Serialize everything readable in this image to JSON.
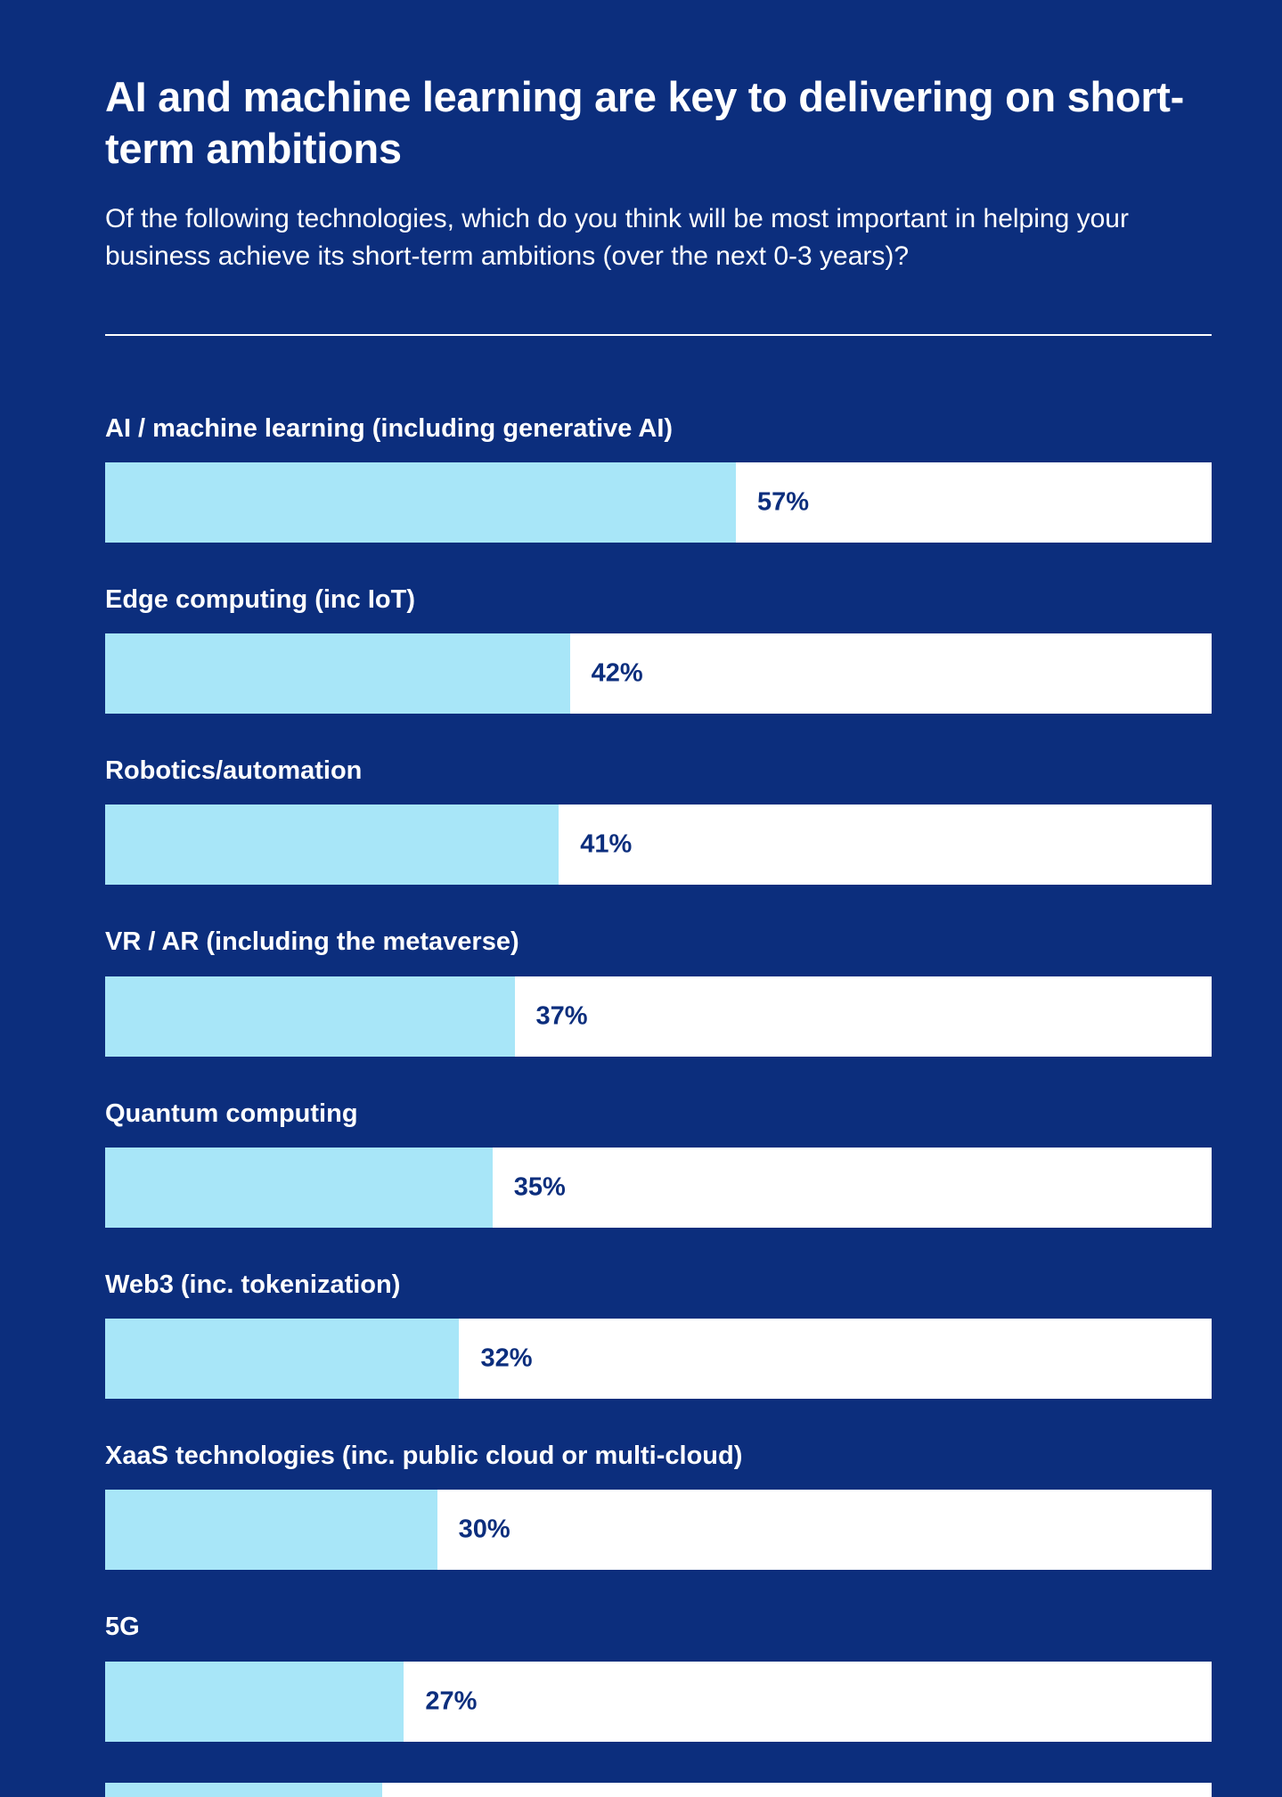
{
  "header": {
    "title": "AI and machine learning are key to delivering on short-term ambitions",
    "subtitle": "Of the following technologies, which do you think will be most important in helping your business achieve its short-term ambitions (over the next 0-3 years)?"
  },
  "colors": {
    "background": "#0c2e7d",
    "bar_fill": "#a8e6f8",
    "bar_track": "#ffffff",
    "value_text": "#0c2e7d",
    "text": "#ffffff"
  },
  "chart_data": {
    "type": "bar",
    "orientation": "horizontal",
    "title": "AI and machine learning are key to delivering on short-term ambitions",
    "subtitle": "Of the following technologies, which do you think will be most important in helping your business achieve its short-term ambitions (over the next 0-3 years)?",
    "categories": [
      "AI / machine learning (including generative AI)",
      "Edge computing (inc IoT)",
      "Robotics/automation",
      "VR / AR (including the metaverse)",
      "Quantum computing",
      "Web3 (inc. tokenization)",
      "XaaS technologies (inc. public cloud or multi-cloud)",
      "5G"
    ],
    "values": [
      57,
      42,
      41,
      37,
      35,
      32,
      30,
      27
    ],
    "value_suffix": "%",
    "xlim": [
      0,
      100
    ],
    "grid": false,
    "legend": false,
    "cutoff_partial_bar": {
      "visible": true,
      "approx_value": 25
    }
  }
}
